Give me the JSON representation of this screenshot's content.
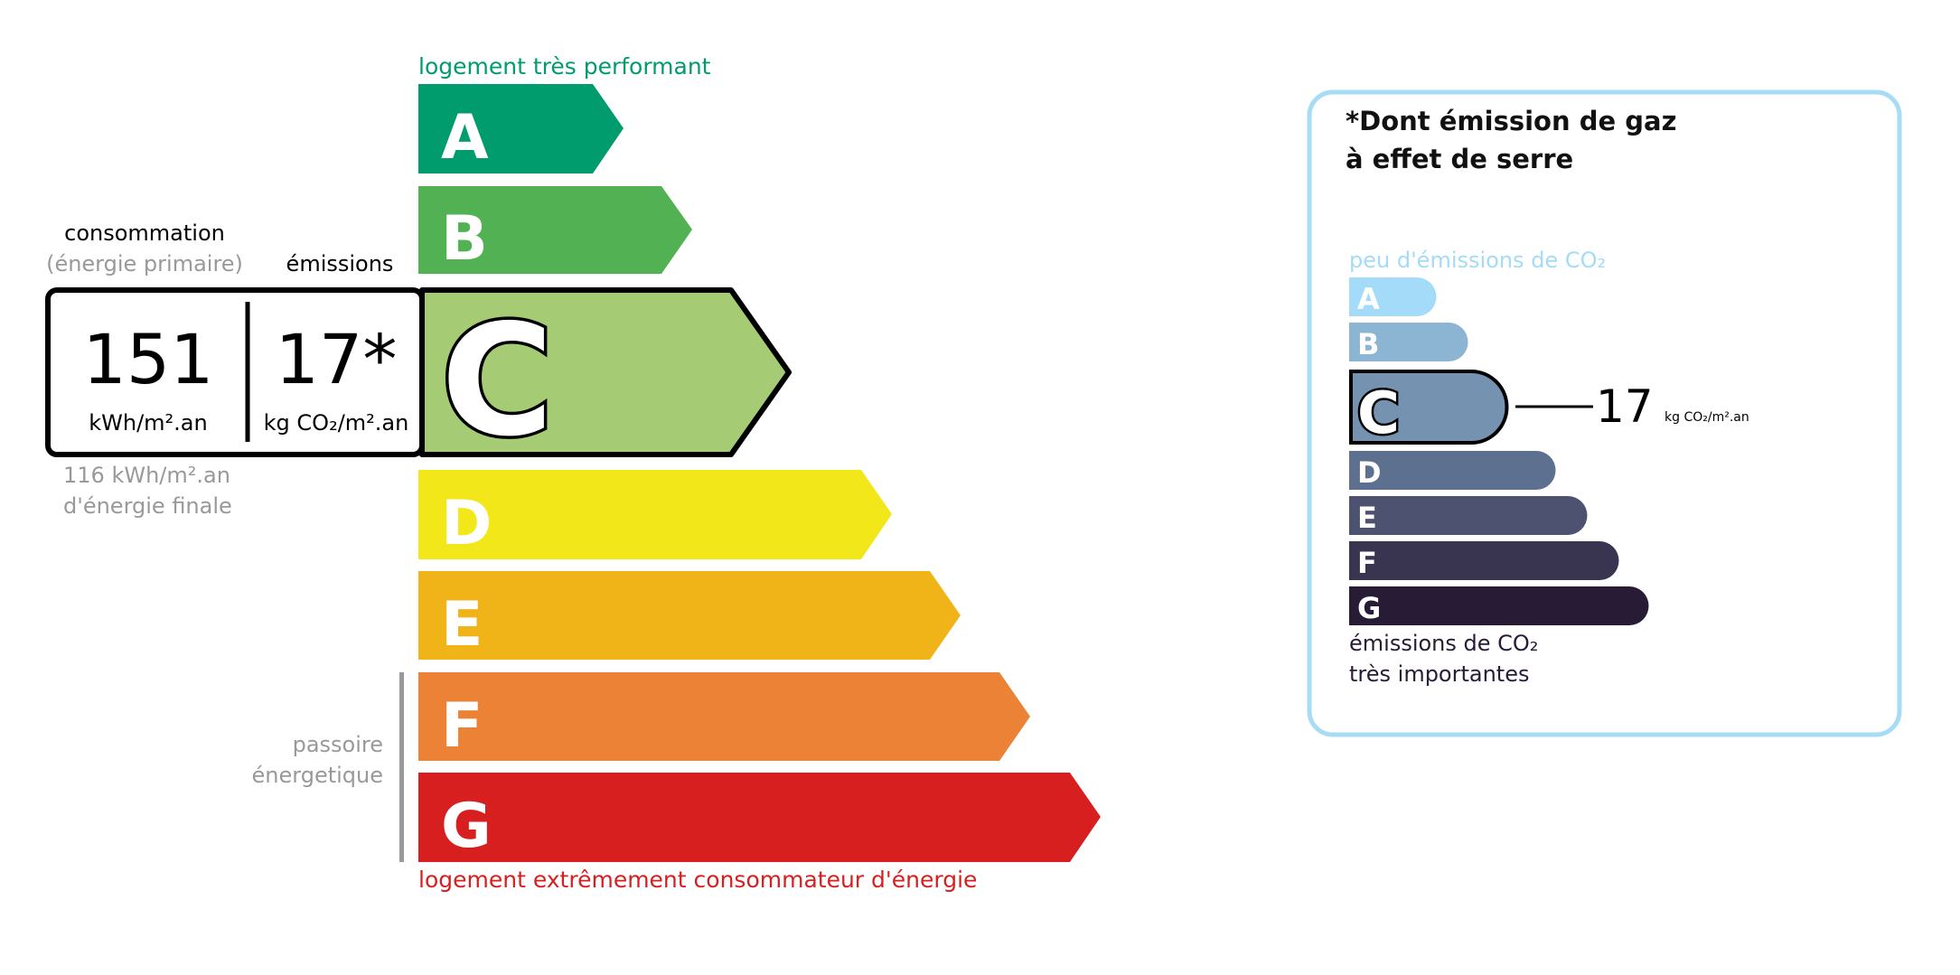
{
  "energy": {
    "top_label": "logement très performant",
    "bottom_label": "logement extrêmement consommateur d'énergie",
    "passoire_line1": "passoire",
    "passoire_line2": "énergetique",
    "consumption_title": "consommation",
    "consumption_subtitle": "(énergie primaire)",
    "emissions_title": "émissions",
    "consumption_value": "151",
    "consumption_unit": "kWh/m².an",
    "emissions_value": "17*",
    "emissions_unit": "kg CO₂/m².an",
    "final_energy_value": "116 kWh/m².an",
    "final_energy_label": "d'énergie finale",
    "current_class": "C",
    "classes": [
      {
        "letter": "A",
        "color": "#009c6d"
      },
      {
        "letter": "B",
        "color": "#52b153"
      },
      {
        "letter": "C",
        "color": "#a5cc74"
      },
      {
        "letter": "D",
        "color": "#f2e719"
      },
      {
        "letter": "E",
        "color": "#f0b418"
      },
      {
        "letter": "F",
        "color": "#eb8235"
      },
      {
        "letter": "G",
        "color": "#d71f20"
      }
    ]
  },
  "ges": {
    "title_line1": "*Dont émission de gaz",
    "title_line2": "à effet de serre",
    "top_label": "peu d'émissions de CO₂",
    "bottom_line1": "émissions de CO₂",
    "bottom_line2": "très importantes",
    "value": "17",
    "unit": "kg CO₂/m².an",
    "current_class": "C",
    "classes": [
      {
        "letter": "A",
        "color": "#a4dbf8"
      },
      {
        "letter": "B",
        "color": "#8cb4d3"
      },
      {
        "letter": "C",
        "color": "#7692b1"
      },
      {
        "letter": "D",
        "color": "#5e708f"
      },
      {
        "letter": "E",
        "color": "#4d5271"
      },
      {
        "letter": "F",
        "color": "#393551"
      },
      {
        "letter": "G",
        "color": "#281b35"
      }
    ],
    "border_color": "#a6dcf5"
  }
}
